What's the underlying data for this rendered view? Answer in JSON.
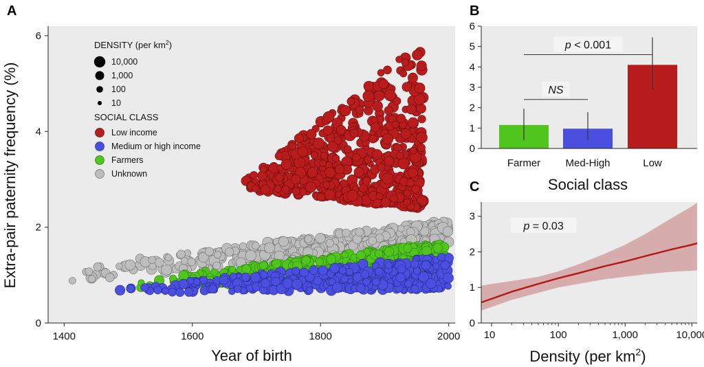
{
  "colors": {
    "low": "#b81c1c",
    "low_edge": "#6a0d0d",
    "medium": "#4a4fe0",
    "medium_edge": "#26288a",
    "farmers": "#4fc51e",
    "farmers_edge": "#2c7c10",
    "unknown": "#bdbdbd",
    "unknown_edge": "#6f6f6f",
    "panel_bg": "#ebebeb",
    "curve": "#b31b1b",
    "band": "#d4a1a1"
  },
  "chart_data": [
    {
      "panel": "A",
      "type": "scatter",
      "xlabel": "Year of birth",
      "ylabel": "Extra-pair paternity frequency (%)",
      "xlim": [
        1375,
        2010
      ],
      "ylim": [
        0,
        6.2
      ],
      "xticks": [
        "1400",
        "1600",
        "1800",
        "2000"
      ],
      "xtick_values": [
        1400,
        1600,
        1800,
        2000
      ],
      "yticks": [
        "0",
        "2",
        "4",
        "6"
      ],
      "ytick_values": [
        0,
        2,
        4,
        6
      ],
      "grid": false,
      "legend": {
        "placement": "top-left",
        "density_title": "DENSITY (per km",
        "density_title_sup": "2",
        "density_title_end": ")",
        "sizes": [
          {
            "label": "10,000",
            "density": 10000
          },
          {
            "label": "1,000",
            "density": 1000
          },
          {
            "label": "100",
            "density": 100
          },
          {
            "label": "10",
            "density": 10
          }
        ],
        "class_title": "SOCIAL CLASS",
        "classes": [
          {
            "label": "Low income",
            "key": "low"
          },
          {
            "label": "Medium or high income",
            "key": "medium"
          },
          {
            "label": "Farmers",
            "key": "farmers"
          },
          {
            "label": "Unknown",
            "key": "unknown"
          }
        ]
      },
      "series": [
        {
          "key": "unknown",
          "x_range": [
            1390,
            2000
          ],
          "y_start_range": [
            0.85,
            1.15
          ],
          "y_end_range": [
            1.6,
            2.15
          ],
          "density_range": [
            100,
            10000
          ]
        },
        {
          "key": "farmers",
          "x_range": [
            1490,
            1995
          ],
          "y_start_range": [
            0.7,
            0.85
          ],
          "y_end_range": [
            0.95,
            1.7
          ],
          "density_range": [
            100,
            5000
          ]
        },
        {
          "key": "medium",
          "x_range": [
            1465,
            2000
          ],
          "y_start_range": [
            0.62,
            0.72
          ],
          "y_end_range": [
            0.7,
            1.4
          ],
          "density_range": [
            100,
            5000
          ]
        },
        {
          "key": "low",
          "x_range": [
            1680,
            1960
          ],
          "y_start_range": [
            2.8,
            2.95
          ],
          "y_end_range": [
            2.4,
            5.95
          ],
          "density_range": [
            100,
            10000
          ]
        }
      ]
    },
    {
      "panel": "B",
      "type": "bar",
      "categories": [
        "Farmer",
        "Med-High",
        "Low"
      ],
      "values": [
        1.15,
        0.97,
        4.1
      ],
      "errors_low": [
        0.4,
        0.4,
        2.9
      ],
      "errors_high": [
        1.95,
        1.78,
        5.45
      ],
      "xlabel": "Social class",
      "ylabel": "",
      "ylim": [
        0,
        6
      ],
      "yticks": [
        "0",
        "1",
        "2",
        "3",
        "4",
        "5",
        "6"
      ],
      "ytick_values": [
        0,
        1,
        2,
        3,
        4,
        5,
        6
      ],
      "annotations": [
        {
          "label_italic": "p",
          "label_rest": " < 0.001",
          "from": 0,
          "to": 2,
          "y": 4.6
        },
        {
          "label_italic": "NS",
          "label_rest": "",
          "from": 0,
          "to": 1,
          "y": 2.4
        }
      ]
    },
    {
      "panel": "C",
      "type": "line",
      "x_scale": "log",
      "xlabel": "Density (per km",
      "xlabel_sup": "2",
      "xlabel_end": ")",
      "ylabel": "",
      "xlim": [
        7,
        12000
      ],
      "ylim": [
        0,
        3.4
      ],
      "xticks": [
        "10",
        "100",
        "1,000",
        "10,000"
      ],
      "xtick_values": [
        10,
        100,
        1000,
        10000
      ],
      "yticks": [
        "0",
        "1",
        "2",
        "3"
      ],
      "ytick_values": [
        0,
        1,
        2,
        3
      ],
      "x": [
        7,
        10,
        20,
        50,
        100,
        200,
        500,
        1000,
        2000,
        5000,
        10000,
        12000
      ],
      "y": [
        0.58,
        0.68,
        0.88,
        1.1,
        1.26,
        1.4,
        1.6,
        1.73,
        1.88,
        2.07,
        2.2,
        2.24
      ],
      "band_low": [
        0.35,
        0.45,
        0.65,
        0.85,
        1.0,
        1.1,
        1.23,
        1.3,
        1.37,
        1.44,
        1.47,
        1.48
      ],
      "band_high": [
        1.05,
        1.1,
        1.18,
        1.3,
        1.45,
        1.65,
        1.95,
        2.2,
        2.5,
        2.95,
        3.28,
        3.38
      ],
      "annotations": [
        {
          "label_italic": "p",
          "label_rest": " = 0.03",
          "x": 60,
          "y": 2.65
        }
      ]
    }
  ]
}
